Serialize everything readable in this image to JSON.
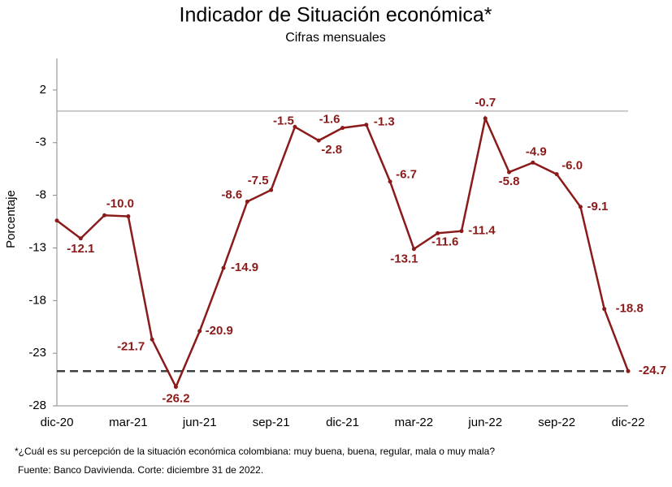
{
  "chart_data": {
    "type": "line",
    "title": "Indicador de Situación económica*",
    "subtitle": "Cifras mensuales",
    "y_label": "Porcentaje",
    "categories": [
      "dic-20",
      null,
      null,
      "mar-21",
      null,
      null,
      "jun-21",
      null,
      null,
      "sep-21",
      null,
      null,
      "dic-21",
      null,
      null,
      "mar-22",
      null,
      null,
      "jun-22",
      null,
      null,
      "sep-22",
      null,
      null,
      "dic-22"
    ],
    "series": [
      {
        "color": "#8b1a1a",
        "values": [
          -10.4,
          -12.1,
          -9.9,
          -10,
          -21.7,
          -26.2,
          -20.9,
          -14.9,
          -8.6,
          -7.5,
          -1.5,
          -2.8,
          -1.6,
          -1.3,
          -6.7,
          -13.1,
          -11.6,
          -11.4,
          -0.7,
          -5.8,
          -4.9,
          -6,
          -9.1,
          -18.8,
          -24.7
        ],
        "value_labels": [
          null,
          "-12.1",
          null,
          "-10.0",
          "-21.7",
          "-26.2",
          "-20.9",
          "-14.9",
          "-8.6",
          "-7.5",
          "-1.5",
          "-2.8",
          "-1.6",
          "-1.3",
          "-6.7",
          "-13.1",
          "-11.6",
          "-11.4",
          "-0.7",
          "-5.8",
          "-4.9",
          "-6.0",
          "-9.1",
          "-18.8",
          "-24.7"
        ]
      }
    ],
    "ylim": [
      -28,
      5
    ],
    "yticks": [
      2,
      -3,
      -8,
      -13,
      -18,
      -23,
      -28
    ],
    "hlines": [
      {
        "value": 0,
        "style": "solid",
        "color": "#999999"
      },
      {
        "value": -24.7,
        "style": "dashed",
        "color": "#404040"
      }
    ],
    "footnotes": [
      "*¿Cuál es su percepción de la situación económica colombiana: muy buena, buena, regular, mala  o muy mala?",
      "Fuente: Banco Davivienda. Corte: diciembre 31 de 2022."
    ]
  }
}
